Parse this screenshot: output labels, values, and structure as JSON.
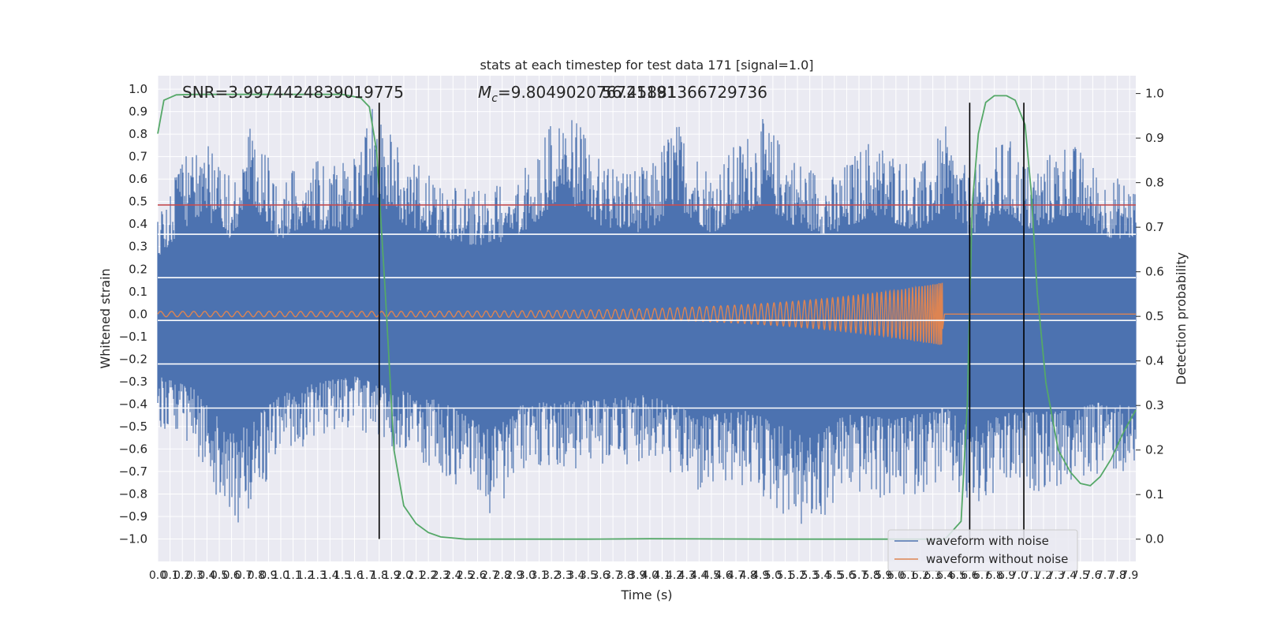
{
  "chart_data": {
    "type": "line",
    "title": "stats at each timestep for test data 171 [signal=1.0]",
    "xlabel": "Time (s)",
    "ylabel": "Whitened strain",
    "y2label": "Detection probability",
    "xlim": [
      0.0,
      7.95
    ],
    "ylim": [
      -1.1,
      1.06
    ],
    "y2lim": [
      -0.05,
      1.04
    ],
    "x_tick_step": 0.1,
    "x_ticks_last": 7.9,
    "y_ticks": [
      -1.0,
      -0.9,
      -0.8,
      -0.7,
      -0.6,
      -0.5,
      -0.4,
      -0.3,
      -0.2,
      -0.1,
      0.0,
      0.1,
      0.2,
      0.3,
      0.4,
      0.5,
      0.6,
      0.7,
      0.8,
      0.9,
      1.0
    ],
    "y2_ticks": [
      0.0,
      0.1,
      0.2,
      0.3,
      0.4,
      0.5,
      0.6,
      0.7,
      0.8,
      0.9,
      1.0
    ],
    "grid": true,
    "background": "#eaeaf2",
    "annotations": {
      "snr": "SNR=3.9974424839019775",
      "mc_symbol": "M",
      "mc_subscript": "c",
      "mc_value": "=9.804902076721191",
      "overlap": "56.45881366729736"
    },
    "noisy_waveform": {
      "name": "waveform with noise",
      "color": "#4c72b0",
      "envelope_upper": [
        {
          "t": 0.0,
          "v": 0.45
        },
        {
          "t": 0.2,
          "v": 0.68
        },
        {
          "t": 0.35,
          "v": 0.8
        },
        {
          "t": 0.6,
          "v": 0.6
        },
        {
          "t": 0.75,
          "v": 0.84
        },
        {
          "t": 1.0,
          "v": 0.6
        },
        {
          "t": 1.2,
          "v": 0.72
        },
        {
          "t": 1.4,
          "v": 0.65
        },
        {
          "t": 1.6,
          "v": 0.7
        },
        {
          "t": 1.75,
          "v": 0.95
        },
        {
          "t": 2.0,
          "v": 0.72
        },
        {
          "t": 2.3,
          "v": 0.6
        },
        {
          "t": 2.6,
          "v": 0.55
        },
        {
          "t": 2.9,
          "v": 0.6
        },
        {
          "t": 3.3,
          "v": 0.94
        },
        {
          "t": 3.6,
          "v": 0.7
        },
        {
          "t": 4.0,
          "v": 0.65
        },
        {
          "t": 4.2,
          "v": 0.88
        },
        {
          "t": 4.5,
          "v": 0.65
        },
        {
          "t": 4.9,
          "v": 0.88
        },
        {
          "t": 5.2,
          "v": 0.7
        },
        {
          "t": 5.5,
          "v": 0.62
        },
        {
          "t": 5.8,
          "v": 0.8
        },
        {
          "t": 6.2,
          "v": 0.66
        },
        {
          "t": 6.4,
          "v": 0.84
        },
        {
          "t": 6.6,
          "v": 0.62
        },
        {
          "t": 6.9,
          "v": 0.8
        },
        {
          "t": 7.1,
          "v": 0.66
        },
        {
          "t": 7.4,
          "v": 0.79
        },
        {
          "t": 7.7,
          "v": 0.62
        },
        {
          "t": 7.95,
          "v": 0.6
        }
      ],
      "envelope_lower": [
        {
          "t": 0.0,
          "v": -0.5
        },
        {
          "t": 0.3,
          "v": -0.6
        },
        {
          "t": 0.6,
          "v": -0.97
        },
        {
          "t": 0.75,
          "v": -0.87
        },
        {
          "t": 1.0,
          "v": -0.65
        },
        {
          "t": 1.3,
          "v": -0.55
        },
        {
          "t": 1.6,
          "v": -0.5
        },
        {
          "t": 1.9,
          "v": -0.6
        },
        {
          "t": 2.3,
          "v": -0.7
        },
        {
          "t": 2.7,
          "v": -0.94
        },
        {
          "t": 3.0,
          "v": -0.7
        },
        {
          "t": 3.5,
          "v": -0.7
        },
        {
          "t": 4.0,
          "v": -0.65
        },
        {
          "t": 4.4,
          "v": -0.82
        },
        {
          "t": 4.8,
          "v": -0.78
        },
        {
          "t": 5.3,
          "v": -1.0
        },
        {
          "t": 5.6,
          "v": -0.8
        },
        {
          "t": 6.0,
          "v": -0.85
        },
        {
          "t": 6.4,
          "v": -0.75
        },
        {
          "t": 6.6,
          "v": -0.92
        },
        {
          "t": 6.9,
          "v": -0.8
        },
        {
          "t": 7.4,
          "v": -0.78
        },
        {
          "t": 7.7,
          "v": -0.7
        },
        {
          "t": 7.95,
          "v": -0.75
        }
      ]
    },
    "clean_waveform": {
      "name": "waveform without noise",
      "color": "#dd8452",
      "start_amplitude": 0.012,
      "peak_amplitude": 0.14,
      "merger_time": 6.38,
      "end_time": 7.95
    },
    "detection_probability": {
      "color": "#55a868",
      "points": [
        {
          "t": 0.0,
          "p": 0.91
        },
        {
          "t": 0.05,
          "p": 0.985
        },
        {
          "t": 0.15,
          "p": 0.997
        },
        {
          "t": 0.3,
          "p": 0.998
        },
        {
          "t": 1.5,
          "p": 0.998
        },
        {
          "t": 1.65,
          "p": 0.99
        },
        {
          "t": 1.72,
          "p": 0.97
        },
        {
          "t": 1.78,
          "p": 0.87
        },
        {
          "t": 1.85,
          "p": 0.55
        },
        {
          "t": 1.92,
          "p": 0.2
        },
        {
          "t": 2.0,
          "p": 0.075
        },
        {
          "t": 2.1,
          "p": 0.035
        },
        {
          "t": 2.2,
          "p": 0.015
        },
        {
          "t": 2.3,
          "p": 0.005
        },
        {
          "t": 2.5,
          "p": 0.0
        },
        {
          "t": 3.5,
          "p": 0.0
        },
        {
          "t": 4.0,
          "p": 0.001
        },
        {
          "t": 5.0,
          "p": 0.0
        },
        {
          "t": 6.4,
          "p": 0.0
        },
        {
          "t": 6.53,
          "p": 0.04
        },
        {
          "t": 6.58,
          "p": 0.3
        },
        {
          "t": 6.62,
          "p": 0.75
        },
        {
          "t": 6.67,
          "p": 0.91
        },
        {
          "t": 6.73,
          "p": 0.98
        },
        {
          "t": 6.8,
          "p": 0.995
        },
        {
          "t": 6.9,
          "p": 0.995
        },
        {
          "t": 6.97,
          "p": 0.985
        },
        {
          "t": 7.05,
          "p": 0.93
        },
        {
          "t": 7.1,
          "p": 0.78
        },
        {
          "t": 7.15,
          "p": 0.55
        },
        {
          "t": 7.22,
          "p": 0.35
        },
        {
          "t": 7.32,
          "p": 0.2
        },
        {
          "t": 7.42,
          "p": 0.15
        },
        {
          "t": 7.5,
          "p": 0.125
        },
        {
          "t": 7.58,
          "p": 0.12
        },
        {
          "t": 7.66,
          "p": 0.14
        },
        {
          "t": 7.75,
          "p": 0.18
        },
        {
          "t": 7.85,
          "p": 0.24
        },
        {
          "t": 7.95,
          "p": 0.29
        }
      ]
    },
    "threshold": {
      "value": 0.75,
      "color": "#c44e52"
    },
    "vertical_markers": [
      {
        "t": 1.8,
        "bottom": -1.0,
        "top": 0.94
      },
      {
        "t": 6.6,
        "bottom": -1.0,
        "top": 0.94
      },
      {
        "t": 7.04,
        "bottom": -1.0,
        "top": 0.94
      }
    ],
    "extra_hlines": [
      0.355,
      0.162,
      -0.028,
      -0.222,
      -0.418
    ],
    "legend": {
      "placement": "lower right",
      "entries": [
        "waveform with noise",
        "waveform without noise"
      ]
    }
  }
}
